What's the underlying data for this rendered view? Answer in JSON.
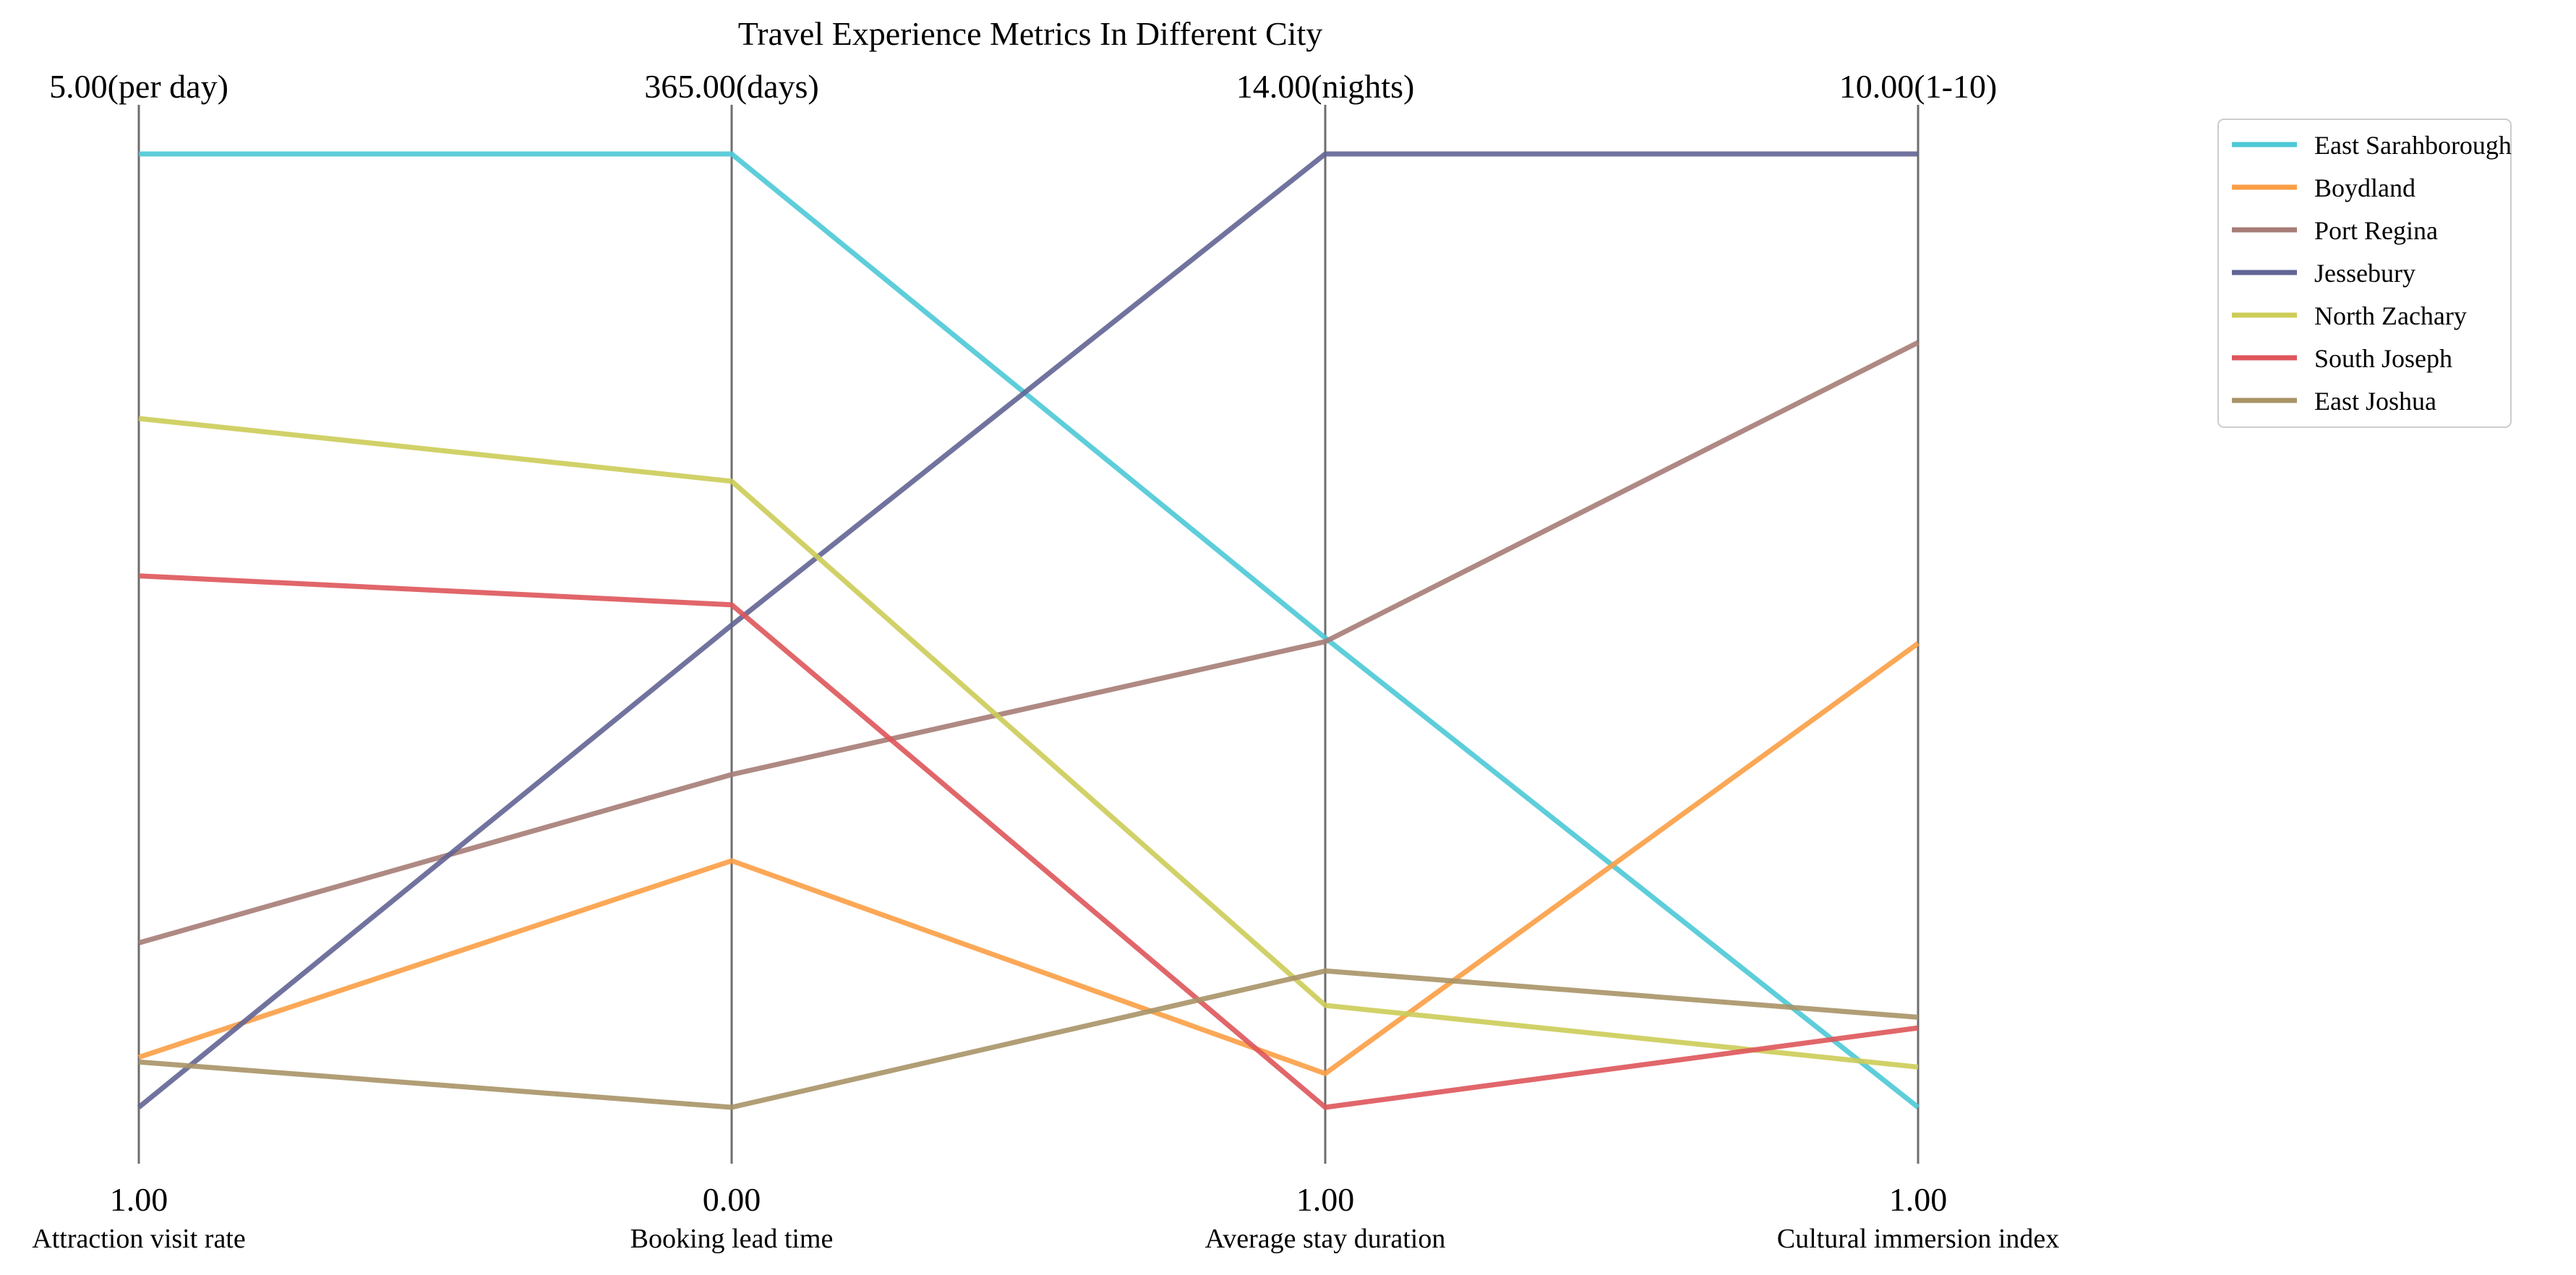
{
  "chart_data": {
    "type": "parallel_coordinates",
    "title": "Travel Experience Metrics In Different City",
    "axes": [
      {
        "label": "Attraction visit rate",
        "min": 1.0,
        "max": 5.0,
        "top_label": "5.00(per day)",
        "bottom_label": "1.00"
      },
      {
        "label": "Booking lead time",
        "min": 0.0,
        "max": 365.0,
        "top_label": "365.00(days)",
        "bottom_label": "0.00"
      },
      {
        "label": "Average stay duration",
        "min": 1.0,
        "max": 14.0,
        "top_label": "14.00(nights)",
        "bottom_label": "1.00"
      },
      {
        "label": "Cultural immersion index",
        "min": 1.0,
        "max": 10.0,
        "top_label": "10.00(1-10)",
        "bottom_label": "1.00"
      }
    ],
    "series": [
      {
        "name": "East Sarahborough",
        "color": "#4cc9d6",
        "values": [
          5.0,
          365.0,
          7.4,
          1.0
        ]
      },
      {
        "name": "Boydland",
        "color": "#fb9e45",
        "values": [
          1.21,
          94.4,
          1.46,
          5.38
        ]
      },
      {
        "name": "Port Regina",
        "color": "#a67c76",
        "values": [
          1.69,
          127.4,
          7.35,
          8.22
        ]
      },
      {
        "name": "Jessebury",
        "color": "#626494",
        "values": [
          1.0,
          184.6,
          14.0,
          10.0
        ]
      },
      {
        "name": "North Zachary",
        "color": "#cccc58",
        "values": [
          3.89,
          239.7,
          2.39,
          1.38
        ]
      },
      {
        "name": "South Joseph",
        "color": "#de555a",
        "values": [
          3.23,
          192.4,
          1.0,
          1.75
        ]
      },
      {
        "name": "East Joshua",
        "color": "#a89367",
        "values": [
          1.19,
          0.0,
          2.86,
          1.85
        ]
      }
    ],
    "legend_position": "top-right",
    "grid": false
  }
}
